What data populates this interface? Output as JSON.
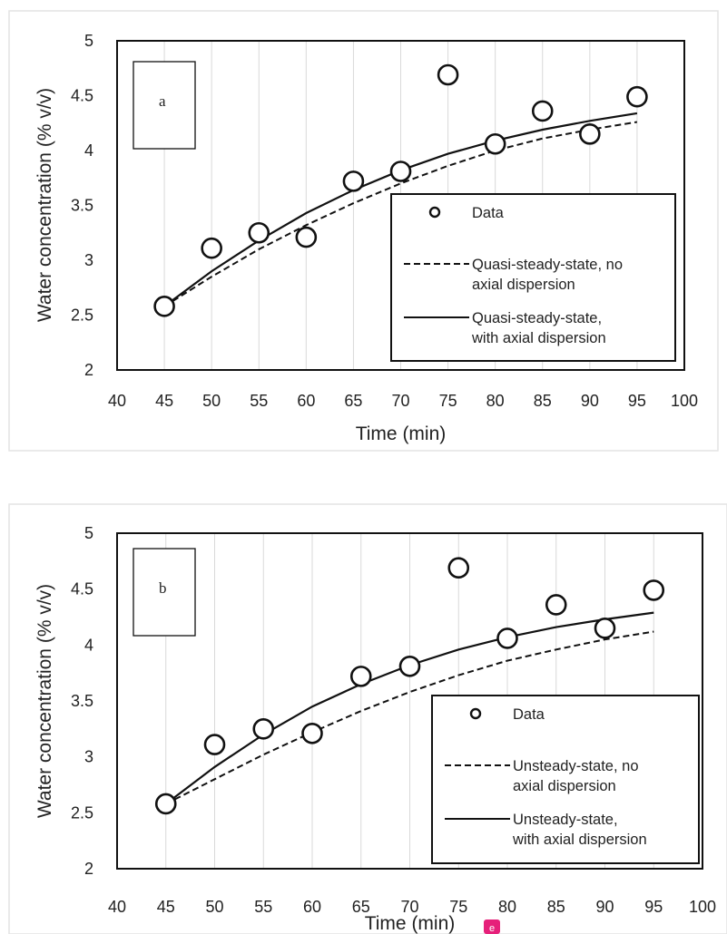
{
  "colors": {
    "line": "#111111",
    "grid": "#d9d9d9",
    "marker": "#111111",
    "badge": "#e6207a"
  },
  "badge": {
    "label": "e"
  },
  "chart_data": [
    {
      "type": "scatter",
      "panel_label": "a",
      "xlabel": "Time (min)",
      "ylabel": "Water concentration (% v/v)",
      "xlim": [
        40,
        100
      ],
      "ylim": [
        2,
        5
      ],
      "x_ticks": [
        "40",
        "45",
        "50",
        "55",
        "60",
        "65",
        "70",
        "75",
        "80",
        "85",
        "90",
        "95",
        "100"
      ],
      "y_ticks": [
        "2",
        "2.5",
        "3",
        "3.5",
        "4",
        "4.5",
        "5"
      ],
      "grid": "vertical",
      "legend_position": "bottom-right",
      "series": [
        {
          "name": "Data",
          "kind": "markers",
          "x": [
            45,
            50,
            55,
            60,
            65,
            70,
            75,
            80,
            85,
            90,
            95
          ],
          "y": [
            2.58,
            3.11,
            3.25,
            3.21,
            3.72,
            3.81,
            4.69,
            4.06,
            4.36,
            4.15,
            4.49
          ]
        },
        {
          "name": "Quasi-steady-state, no axial dispersion",
          "kind": "dashed",
          "x": [
            45,
            50,
            55,
            60,
            65,
            70,
            75,
            80,
            85,
            90,
            95
          ],
          "y": [
            2.58,
            2.85,
            3.1,
            3.32,
            3.52,
            3.7,
            3.86,
            4.0,
            4.11,
            4.19,
            4.26
          ]
        },
        {
          "name": "Quasi-steady-state, with axial dispersion",
          "kind": "solid",
          "x": [
            45,
            50,
            55,
            60,
            65,
            70,
            75,
            80,
            85,
            90,
            95
          ],
          "y": [
            2.58,
            2.9,
            3.18,
            3.43,
            3.64,
            3.82,
            3.97,
            4.09,
            4.19,
            4.27,
            4.34
          ]
        }
      ]
    },
    {
      "type": "scatter",
      "panel_label": "b",
      "xlabel": "Time (min)",
      "ylabel": "Water concentration (% v/v)",
      "xlim": [
        40,
        100
      ],
      "ylim": [
        2,
        5
      ],
      "x_ticks": [
        "40",
        "45",
        "50",
        "55",
        "60",
        "65",
        "70",
        "75",
        "80",
        "85",
        "90",
        "95",
        "100"
      ],
      "y_ticks": [
        "2",
        "2.5",
        "3",
        "3.5",
        "4",
        "4.5",
        "5"
      ],
      "grid": "vertical",
      "legend_position": "bottom-right",
      "series": [
        {
          "name": "Data",
          "kind": "markers",
          "x": [
            45,
            50,
            55,
            60,
            65,
            70,
            75,
            80,
            85,
            90,
            95
          ],
          "y": [
            2.58,
            3.11,
            3.25,
            3.21,
            3.72,
            3.81,
            4.69,
            4.06,
            4.36,
            4.15,
            4.49
          ]
        },
        {
          "name": "Unsteady-state, no axial dispersion",
          "kind": "dashed",
          "x": [
            45,
            50,
            55,
            60,
            65,
            70,
            75,
            80,
            85,
            90,
            95
          ],
          "y": [
            2.58,
            2.8,
            3.02,
            3.22,
            3.41,
            3.58,
            3.73,
            3.86,
            3.96,
            4.05,
            4.12
          ]
        },
        {
          "name": "Unsteady-state, with axial dispersion",
          "kind": "solid",
          "x": [
            45,
            50,
            55,
            60,
            65,
            70,
            75,
            80,
            85,
            90,
            95
          ],
          "y": [
            2.58,
            2.91,
            3.2,
            3.45,
            3.65,
            3.82,
            3.96,
            4.07,
            4.16,
            4.23,
            4.29
          ]
        }
      ]
    }
  ]
}
